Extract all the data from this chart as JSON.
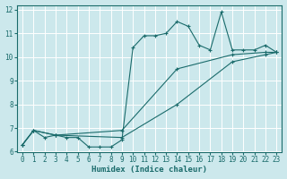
{
  "xlabel": "Humidex (Indice chaleur)",
  "bg_color": "#cce8ec",
  "grid_color": "#ffffff",
  "line_color": "#1a6b6b",
  "xlim": [
    -0.5,
    23.5
  ],
  "ylim": [
    6,
    12.2
  ],
  "xticks": [
    0,
    1,
    2,
    3,
    4,
    5,
    6,
    7,
    8,
    9,
    10,
    11,
    12,
    13,
    14,
    15,
    16,
    17,
    18,
    19,
    20,
    21,
    22,
    23
  ],
  "yticks": [
    6,
    7,
    8,
    9,
    10,
    11,
    12
  ],
  "series": [
    {
      "x": [
        0,
        1,
        2,
        3,
        4,
        5,
        6,
        7,
        8,
        9,
        10,
        11,
        12,
        13,
        14,
        15,
        16,
        17,
        18,
        19,
        20,
        21,
        22,
        23
      ],
      "y": [
        6.3,
        6.9,
        6.6,
        6.7,
        6.6,
        6.6,
        6.2,
        6.2,
        6.2,
        6.5,
        10.4,
        10.9,
        10.9,
        11.0,
        11.5,
        11.3,
        10.5,
        10.3,
        11.9,
        10.3,
        10.3,
        10.3,
        10.5,
        10.2
      ]
    },
    {
      "x": [
        0,
        1,
        3,
        9,
        14,
        19,
        22,
        23
      ],
      "y": [
        6.3,
        6.9,
        6.7,
        6.9,
        9.5,
        10.1,
        10.2,
        10.2
      ]
    },
    {
      "x": [
        0,
        1,
        3,
        9,
        14,
        19,
        22,
        23
      ],
      "y": [
        6.3,
        6.9,
        6.7,
        6.6,
        8.0,
        9.8,
        10.1,
        10.2
      ]
    }
  ]
}
